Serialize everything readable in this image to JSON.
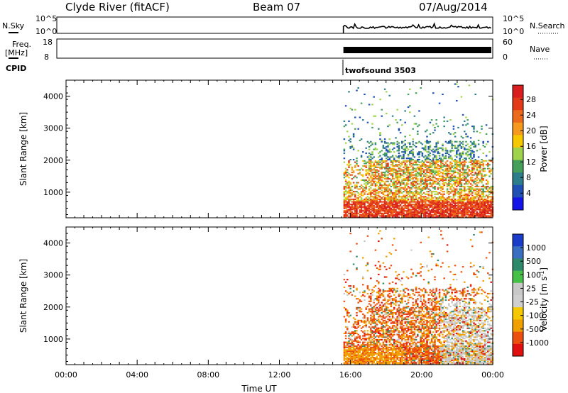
{
  "header": {
    "title": "Clyde River (fitACF)",
    "beam": "Beam 07",
    "date": "07/Aug/2014"
  },
  "panels": {
    "nsky_label": "N.Sky",
    "nsky_ticks": [
      "10^5",
      "10^0"
    ],
    "nsearch_ticks": [
      "10^5",
      "10^0"
    ],
    "nsearch_label": "N.Search",
    "freq_label_1": "Freq.",
    "freq_label_2": "[MHz]",
    "freq_ticks": [
      "18",
      "8"
    ],
    "nave_ticks": [
      "60",
      "0"
    ],
    "nave_label": "Nave",
    "cpid_label": "CPID",
    "cpid_value": "twofsound 3503"
  },
  "colors": {
    "power": [
      "#1414e6",
      "#2050b4",
      "#2e7d8a",
      "#46a05a",
      "#9fd34b",
      "#f5c800",
      "#f59a1e",
      "#ec6a1c",
      "#e33b1a",
      "#d81e1e"
    ],
    "velocity": [
      "#e01010",
      "#ec5010",
      "#f0a000",
      "#f5c800",
      "#cfcfcf",
      "#c8c8c8",
      "#46c046",
      "#2e8a6a",
      "#3a6ec0",
      "#1a3cc8"
    ],
    "velocity_gray": "#c8c8c8"
  },
  "chart_data": [
    {
      "type": "heatmap",
      "name": "power",
      "ylabel": "Slant Range [km]",
      "yticks": [
        "1000",
        "2000",
        "3000",
        "4000"
      ],
      "ylim": [
        200,
        4500
      ],
      "xlim": [
        0,
        24
      ],
      "x_tick_labels": [
        "00:00",
        "04:00",
        "08:00",
        "12:00",
        "16:00",
        "20:00",
        "00:00"
      ],
      "colorbar_label": "Power [dB]",
      "colorbar_ticks": [
        "4",
        "8",
        "12",
        "16",
        "20",
        "24",
        "28"
      ],
      "data_start_hour": 15.6,
      "data_end_hour": 24
    },
    {
      "type": "heatmap",
      "name": "velocity",
      "ylabel": "Slant Range [km]",
      "yticks": [
        "1000",
        "2000",
        "3000",
        "4000"
      ],
      "ylim": [
        200,
        4500
      ],
      "xlim": [
        0,
        24
      ],
      "x_tick_labels": [
        "00:00",
        "04:00",
        "08:00",
        "12:00",
        "16:00",
        "20:00",
        "00:00"
      ],
      "xlabel": "Time UT",
      "colorbar_label": "Velocity [m s-1]",
      "colorbar_ticks": [
        "1000",
        "500",
        "100",
        "25",
        "-25",
        "-100",
        "-500",
        "-1000"
      ],
      "data_start_hour": 15.6,
      "data_end_hour": 24
    }
  ]
}
